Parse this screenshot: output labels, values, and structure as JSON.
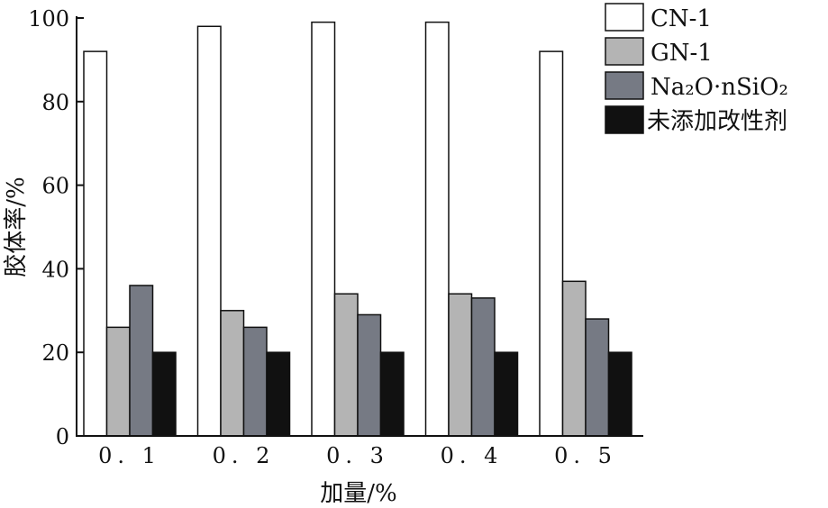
{
  "chart_data": {
    "type": "bar",
    "categories": [
      "0. 1",
      "0. 2",
      "0. 3",
      "0. 4",
      "0. 5"
    ],
    "series": [
      {
        "name": "CN-1",
        "values": [
          92,
          98,
          99,
          99,
          92
        ],
        "color": "#ffffff"
      },
      {
        "name": "GN-1",
        "values": [
          26,
          30,
          34,
          34,
          37
        ],
        "color": "#b4b4b4"
      },
      {
        "name": "Na₂O·nSiO₂",
        "values": [
          36,
          26,
          29,
          33,
          28
        ],
        "color": "#767a84"
      },
      {
        "name": "未添加改性剂",
        "values": [
          20,
          20,
          20,
          20,
          20
        ],
        "color": "#111111"
      }
    ],
    "xlabel": "加量/%",
    "ylabel": "胶体率/%",
    "ylim": [
      0,
      100
    ],
    "yticks": [
      0,
      20,
      40,
      60,
      80,
      100
    ],
    "grid": false,
    "legend_position": "top-right"
  }
}
